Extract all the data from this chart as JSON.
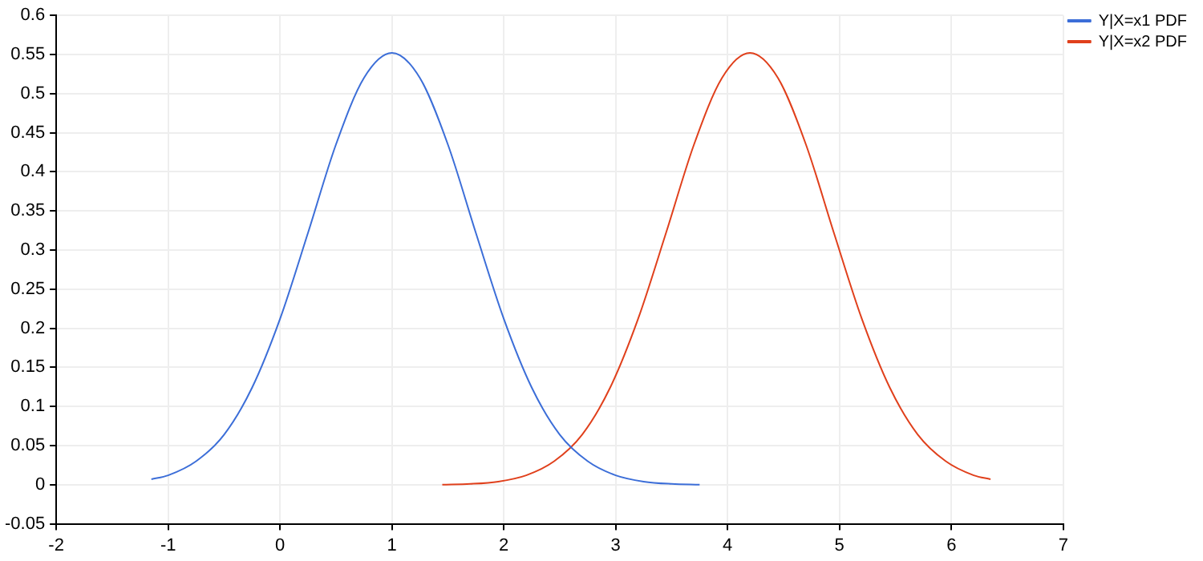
{
  "chart_data": {
    "type": "line",
    "series": [
      {
        "name": "Y|X=x1 PDF",
        "color": "#3c6ed8",
        "x": [
          -1.15,
          -1,
          -0.75,
          -0.5,
          -0.25,
          0,
          0.25,
          0.5,
          0.75,
          1,
          1.25,
          1.5,
          1.75,
          2,
          2.25,
          2.5,
          2.75,
          3,
          3.25,
          3.5,
          3.75
        ],
        "values": [
          0.007,
          0.012,
          0.03,
          0.064,
          0.124,
          0.212,
          0.322,
          0.435,
          0.52,
          0.552,
          0.52,
          0.435,
          0.322,
          0.212,
          0.124,
          0.064,
          0.03,
          0.012,
          0.004,
          0.001,
          0.0
        ]
      },
      {
        "name": "Y|X=x2 PDF",
        "color": "#e0401c",
        "x": [
          1.45,
          1.7,
          1.95,
          2.2,
          2.45,
          2.7,
          2.95,
          3.2,
          3.45,
          3.7,
          3.95,
          4.2,
          4.45,
          4.7,
          4.95,
          5.2,
          5.45,
          5.7,
          5.95,
          6.2,
          6.35
        ],
        "values": [
          0.0,
          0.001,
          0.004,
          0.012,
          0.03,
          0.064,
          0.124,
          0.212,
          0.322,
          0.435,
          0.52,
          0.552,
          0.52,
          0.435,
          0.322,
          0.212,
          0.124,
          0.064,
          0.03,
          0.012,
          0.007
        ]
      }
    ],
    "xlim": [
      -2,
      7
    ],
    "xticks": [
      -2,
      -1,
      0,
      1,
      2,
      3,
      4,
      5,
      6,
      7
    ],
    "ylim": [
      -0.05,
      0.6
    ],
    "yticks": [
      -0.05,
      0,
      0.05,
      0.1,
      0.15,
      0.2,
      0.25,
      0.3,
      0.35,
      0.4,
      0.45,
      0.5,
      0.55,
      0.6
    ],
    "grid": true,
    "legend": "top right",
    "marker": "none",
    "line_style": "solid"
  }
}
